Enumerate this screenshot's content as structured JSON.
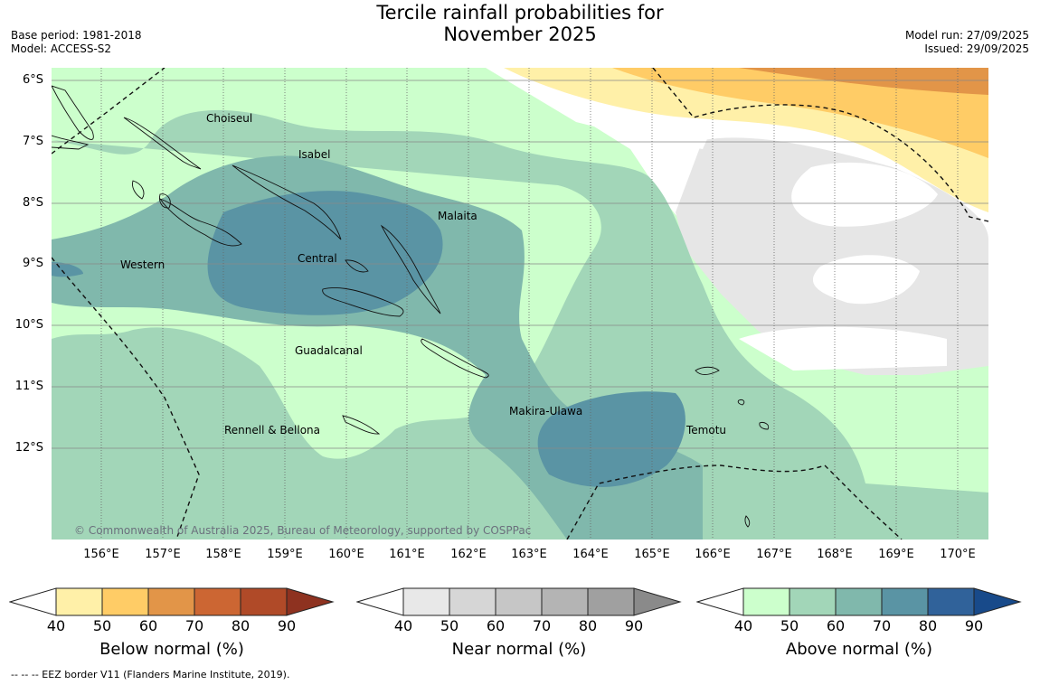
{
  "header": {
    "title_line1": "Tercile rainfall probabilities for",
    "title_line2": "November 2025",
    "base_period": "Base period: 1981-2018",
    "model": "Model: ACCESS-S2",
    "model_run": "Model run: 27/09/2025",
    "issued": "Issued: 29/09/2025"
  },
  "map": {
    "lat_labels": [
      "6°S",
      "7°S",
      "8°S",
      "9°S",
      "10°S",
      "11°S",
      "12°S"
    ],
    "lon_labels": [
      "156°E",
      "157°E",
      "158°E",
      "159°E",
      "160°E",
      "161°E",
      "162°E",
      "163°E",
      "164°E",
      "165°E",
      "166°E",
      "167°E",
      "168°E",
      "169°E",
      "170°E"
    ],
    "regions": [
      "Choiseul",
      "Isabel",
      "Malaita",
      "Western",
      "Central",
      "Guadalcanal",
      "Makira-Ulawa",
      "Rennell & Bellona",
      "Temotu"
    ],
    "copyright": "© Commonwealth of Australia 2025, Bureau of Meteorology, supported by COSPPac"
  },
  "legends": [
    {
      "label": "Below normal (%)",
      "ticks": [
        "40",
        "50",
        "60",
        "70",
        "80",
        "90"
      ],
      "colors": [
        "#fff0a8",
        "#ffcc66",
        "#e29548",
        "#cc6633",
        "#b04a28",
        "#8e3220"
      ]
    },
    {
      "label": "Near normal (%)",
      "ticks": [
        "40",
        "50",
        "60",
        "70",
        "80",
        "90"
      ],
      "colors": [
        "#e8e8e8",
        "#d6d6d6",
        "#c6c6c6",
        "#b4b4b4",
        "#a0a0a0",
        "#8a8a8a"
      ]
    },
    {
      "label": "Above normal (%)",
      "ticks": [
        "40",
        "50",
        "60",
        "70",
        "80",
        "90"
      ],
      "colors": [
        "#ccffcc",
        "#a2d6b8",
        "#80b8ac",
        "#5a94a4",
        "#30629a",
        "#184a8a"
      ]
    }
  ],
  "footer": {
    "eez_note": "-- -- -- EEZ border V11 (Flanders Marine Institute, 2019)."
  }
}
